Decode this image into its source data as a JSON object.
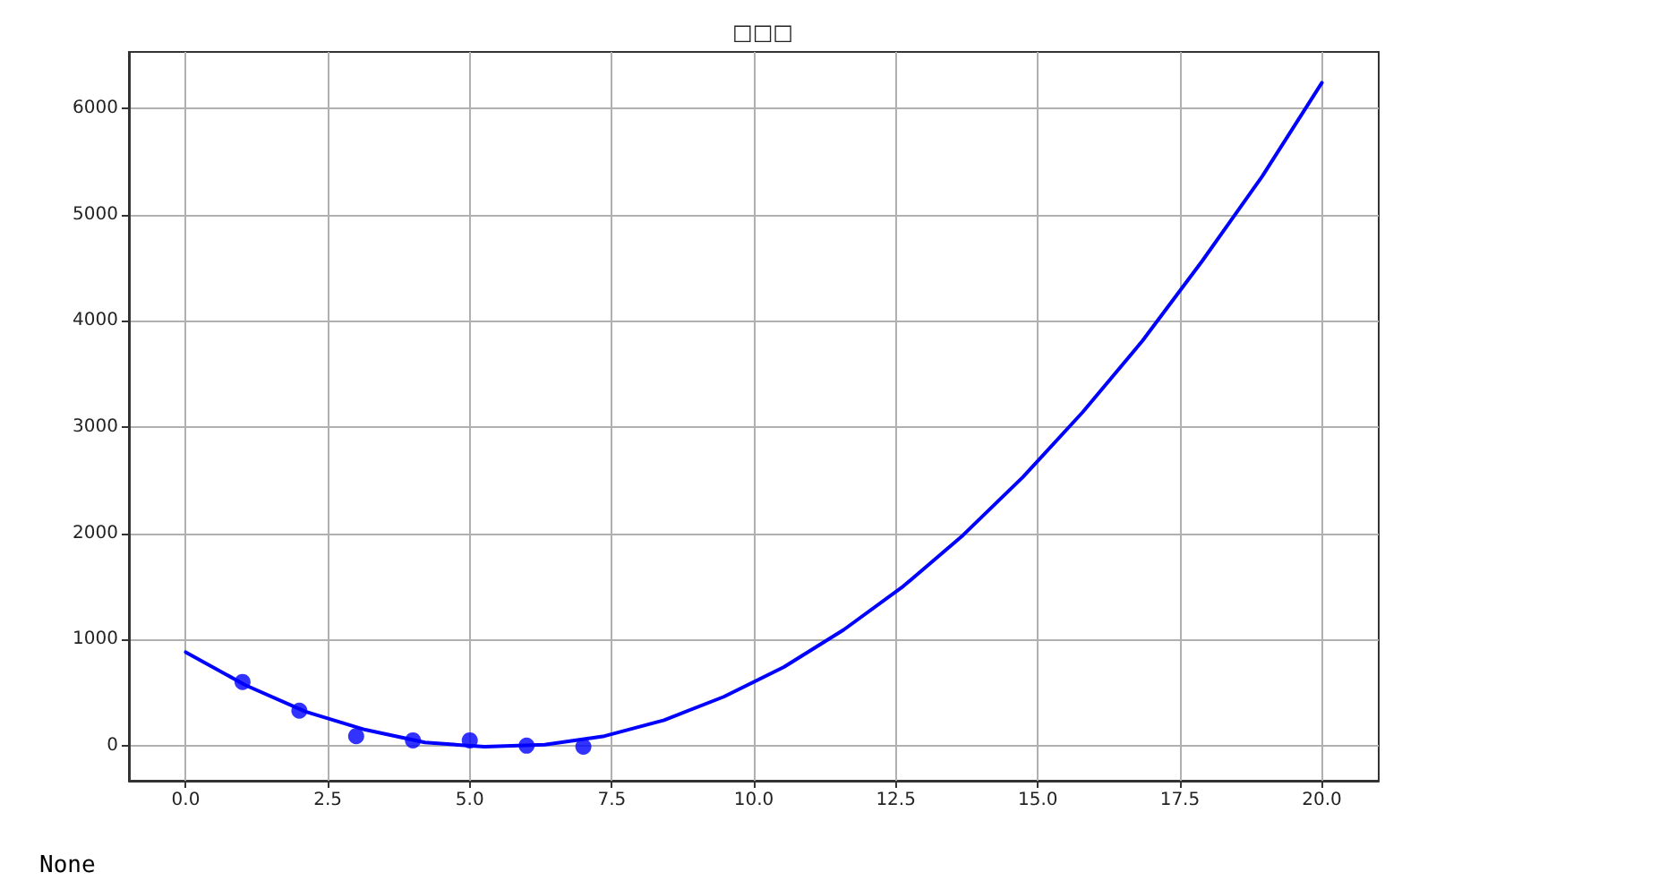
{
  "chart_data": {
    "type": "scatter",
    "title": "□□□",
    "series": [
      {
        "marker": "circle",
        "color": "#0000ff",
        "x": [
          1,
          2,
          3,
          4,
          5,
          6,
          7
        ],
        "values": [
          600,
          330,
          90,
          50,
          50,
          0,
          -10
        ]
      },
      {
        "type": "line",
        "marker": "none",
        "color": "#0000ff",
        "x": [
          0,
          1.05,
          2.11,
          3.16,
          4.21,
          5.26,
          6.32,
          7.37,
          8.42,
          9.47,
          10.53,
          11.58,
          12.63,
          13.68,
          14.74,
          15.79,
          16.84,
          17.89,
          18.95,
          20
        ],
        "values": [
          880,
          570,
          320,
          150,
          30,
          -10,
          10,
          90,
          240,
          460,
          740,
          1090,
          1500,
          1980,
          2530,
          3140,
          3810,
          4560,
          5360,
          6240
        ]
      }
    ],
    "xlim": [
      -1,
      21
    ],
    "xticks": [
      {
        "value": 0,
        "label": "0.0"
      },
      2.5,
      {
        "value": 5,
        "label": "5.0"
      },
      7.5,
      {
        "value": 10,
        "label": "10.0"
      },
      12.5,
      {
        "value": 15,
        "label": "15.0"
      },
      17.5,
      {
        "value": 20,
        "label": "20.0"
      }
    ],
    "ylim": [
      -330,
      6530
    ],
    "yticks": [
      0,
      1000,
      2000,
      3000,
      4000,
      5000,
      6000
    ],
    "grid": true,
    "annotations": [
      "None"
    ]
  }
}
